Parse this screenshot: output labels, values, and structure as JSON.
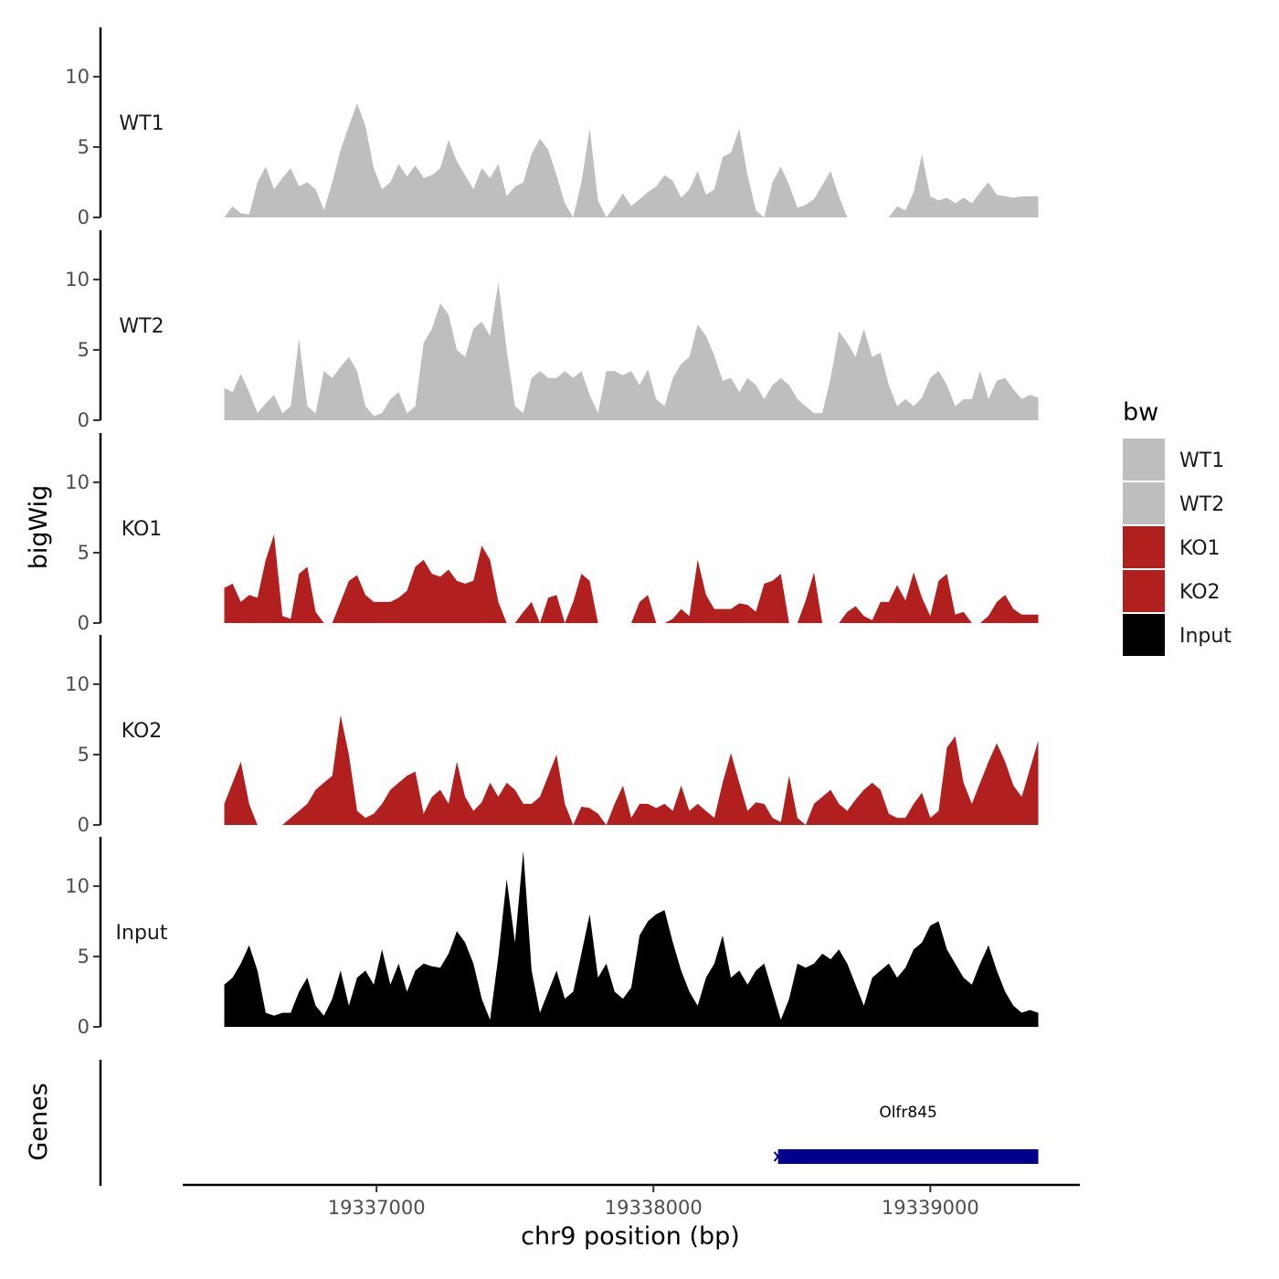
{
  "chart_data": {
    "type": "area",
    "ylabel": "bigWig",
    "xlabel": "chr9 position (bp)",
    "xlim": [
      19336300,
      19339540
    ],
    "ylim": [
      0,
      13.5
    ],
    "yticks": [
      0,
      5,
      10
    ],
    "xticks": [
      19337000,
      19338000,
      19339000
    ],
    "xtick_labels": [
      "19337000",
      "19338000",
      "19339000"
    ],
    "legend": {
      "title": "bw",
      "entries": [
        {
          "label": "WT1",
          "color": "#bebebe"
        },
        {
          "label": "WT2",
          "color": "#bebebe"
        },
        {
          "label": "KO1",
          "color": "#b21f1f"
        },
        {
          "label": "KO2",
          "color": "#b21f1f"
        },
        {
          "label": "Input",
          "color": "#000000"
        }
      ],
      "placement": "right"
    },
    "series": [
      {
        "name": "WT1",
        "color": "#bebebe",
        "x": [
          19336450,
          19336480,
          19336510,
          19336540,
          19336570,
          19336600,
          19336630,
          19336660,
          19336690,
          19336720,
          19336750,
          19336780,
          19336810,
          19336840,
          19336870,
          19336900,
          19336930,
          19336960,
          19336990,
          19337020,
          19337050,
          19337080,
          19337110,
          19337140,
          19337170,
          19337200,
          19337230,
          19337260,
          19337290,
          19337320,
          19337350,
          19337380,
          19337410,
          19337440,
          19337470,
          19337500,
          19337530,
          19337560,
          19337590,
          19337620,
          19337650,
          19337680,
          19337710,
          19337740,
          19337770,
          19337800,
          19337830,
          19337860,
          19337890,
          19337920,
          19337950,
          19337980,
          19338010,
          19338040,
          19338070,
          19338100,
          19338130,
          19338160,
          19338190,
          19338220,
          19338250,
          19338280,
          19338310,
          19338340,
          19338370,
          19338400,
          19338430,
          19338460,
          19338490,
          19338520,
          19338550,
          19338580,
          19338610,
          19338640,
          19338670,
          19338700,
          19338730,
          19338760,
          19338790,
          19338820,
          19338850,
          19338880,
          19338910,
          19338940,
          19338970,
          19339000,
          19339030,
          19339060,
          19339090,
          19339120,
          19339150,
          19339180,
          19339210,
          19339240,
          19339270,
          19339300,
          19339330,
          19339360,
          19339390
        ],
        "values": [
          0,
          0.8,
          0.3,
          0.2,
          2.5,
          3.6,
          2.0,
          2.8,
          3.5,
          2.2,
          2.5,
          2.0,
          0.5,
          2.5,
          4.8,
          6.5,
          8.1,
          6.5,
          3.5,
          2.0,
          2.5,
          3.8,
          2.9,
          3.7,
          2.8,
          3.0,
          3.5,
          5.5,
          4.0,
          3.0,
          2.0,
          3.5,
          2.8,
          3.8,
          1.5,
          2.2,
          2.5,
          4.5,
          5.6,
          4.8,
          3.0,
          1.0,
          0,
          2.5,
          6.3,
          1.2,
          0,
          0.8,
          1.7,
          0.8,
          1.3,
          1.8,
          2.2,
          3.0,
          2.6,
          1.4,
          2.0,
          3.3,
          1.6,
          2.0,
          4.3,
          4.6,
          6.3,
          3.0,
          0.5,
          0,
          2.5,
          3.6,
          2.3,
          0.7,
          0.9,
          1.3,
          2.3,
          3.3,
          1.5,
          0,
          0,
          0,
          0,
          0,
          0,
          0.8,
          0.5,
          1.8,
          4.5,
          1.5,
          1.2,
          1.4,
          1.0,
          1.4,
          1.0,
          1.8,
          2.5,
          1.6,
          1.5,
          1.4,
          1.5,
          1.5,
          1.5
        ]
      },
      {
        "name": "WT2",
        "color": "#bebebe",
        "x": [
          19336450,
          19336480,
          19336510,
          19336540,
          19336570,
          19336600,
          19336630,
          19336660,
          19336690,
          19336720,
          19336750,
          19336780,
          19336810,
          19336840,
          19336870,
          19336900,
          19336930,
          19336960,
          19336990,
          19337020,
          19337050,
          19337080,
          19337110,
          19337140,
          19337170,
          19337200,
          19337230,
          19337260,
          19337290,
          19337320,
          19337350,
          19337380,
          19337410,
          19337440,
          19337470,
          19337500,
          19337530,
          19337560,
          19337590,
          19337620,
          19337650,
          19337680,
          19337710,
          19337740,
          19337770,
          19337800,
          19337830,
          19337860,
          19337890,
          19337920,
          19337950,
          19337980,
          19338010,
          19338040,
          19338070,
          19338100,
          19338130,
          19338160,
          19338190,
          19338220,
          19338250,
          19338280,
          19338310,
          19338340,
          19338370,
          19338400,
          19338430,
          19338460,
          19338490,
          19338520,
          19338550,
          19338580,
          19338610,
          19338640,
          19338670,
          19338700,
          19338730,
          19338760,
          19338790,
          19338820,
          19338850,
          19338880,
          19338910,
          19338940,
          19338970,
          19339000,
          19339030,
          19339060,
          19339090,
          19339120,
          19339150,
          19339180,
          19339210,
          19339240,
          19339270,
          19339300,
          19339330,
          19339360,
          19339390
        ],
        "values": [
          2.3,
          2.0,
          3.3,
          2.0,
          0.5,
          1.2,
          1.8,
          0.5,
          1.0,
          5.8,
          1.0,
          0.5,
          3.5,
          3.0,
          3.8,
          4.5,
          3.5,
          1.0,
          0.3,
          0.5,
          1.5,
          2.0,
          0.5,
          1.0,
          5.5,
          6.5,
          8.3,
          7.5,
          5.0,
          4.5,
          6.5,
          7.0,
          6.0,
          9.8,
          5.0,
          1.0,
          0.5,
          3.0,
          3.5,
          3.0,
          3.0,
          3.5,
          3.0,
          3.5,
          1.8,
          0.5,
          3.5,
          3.5,
          3.2,
          3.5,
          2.5,
          3.6,
          1.5,
          1.0,
          3.0,
          4.0,
          4.5,
          6.8,
          6.0,
          4.6,
          2.8,
          3.0,
          2.0,
          3.0,
          2.5,
          1.5,
          2.5,
          3.0,
          2.5,
          1.5,
          1.0,
          0.5,
          0.5,
          3.0,
          6.3,
          5.5,
          4.5,
          6.5,
          4.5,
          4.8,
          2.5,
          1.0,
          1.5,
          1.0,
          1.6,
          3.0,
          3.5,
          2.5,
          1.0,
          1.5,
          1.5,
          3.5,
          1.5,
          2.8,
          3.0,
          2.2,
          1.5,
          1.8,
          1.6
        ]
      },
      {
        "name": "KO1",
        "color": "#b21f1f",
        "x": [
          19336450,
          19336480,
          19336510,
          19336540,
          19336570,
          19336600,
          19336630,
          19336660,
          19336690,
          19336720,
          19336750,
          19336780,
          19336810,
          19336840,
          19336870,
          19336900,
          19336930,
          19336960,
          19336990,
          19337020,
          19337050,
          19337080,
          19337110,
          19337140,
          19337170,
          19337200,
          19337230,
          19337260,
          19337290,
          19337320,
          19337350,
          19337380,
          19337410,
          19337440,
          19337470,
          19337500,
          19337530,
          19337560,
          19337590,
          19337620,
          19337650,
          19337680,
          19337710,
          19337740,
          19337770,
          19337800,
          19337830,
          19337860,
          19337890,
          19337920,
          19337950,
          19337980,
          19338010,
          19338040,
          19338070,
          19338100,
          19338130,
          19338160,
          19338190,
          19338220,
          19338250,
          19338280,
          19338310,
          19338340,
          19338370,
          19338400,
          19338430,
          19338460,
          19338490,
          19338520,
          19338550,
          19338580,
          19338610,
          19338640,
          19338670,
          19338700,
          19338730,
          19338760,
          19338790,
          19338820,
          19338850,
          19338880,
          19338910,
          19338940,
          19338970,
          19339000,
          19339030,
          19339060,
          19339090,
          19339120,
          19339150,
          19339180,
          19339210,
          19339240,
          19339270,
          19339300,
          19339330,
          19339360,
          19339390
        ],
        "values": [
          2.5,
          2.8,
          1.5,
          2.0,
          1.8,
          4.5,
          6.3,
          0.5,
          0.3,
          3.5,
          4.0,
          0.8,
          0,
          0,
          1.5,
          3.0,
          3.4,
          2.0,
          1.5,
          1.5,
          1.5,
          1.8,
          2.3,
          4.0,
          4.5,
          3.5,
          3.3,
          3.8,
          3.0,
          2.8,
          3.0,
          5.5,
          4.5,
          1.5,
          0,
          0,
          0.8,
          1.5,
          0,
          1.8,
          2.0,
          0,
          1.5,
          3.5,
          3.0,
          0,
          0,
          0,
          0,
          0,
          1.5,
          2.0,
          0,
          0,
          0.3,
          1.0,
          0.5,
          4.5,
          2.0,
          1.0,
          1.0,
          1.0,
          1.4,
          1.3,
          0.8,
          2.8,
          3.0,
          3.5,
          0,
          0,
          1.6,
          3.6,
          0,
          0,
          0,
          0.8,
          1.2,
          0.5,
          0.2,
          1.5,
          1.5,
          2.7,
          1.6,
          3.6,
          1.8,
          0.5,
          3.0,
          3.5,
          0.6,
          0.8,
          0,
          0,
          0.5,
          1.5,
          2.0,
          1.0,
          0.6,
          0.6,
          0.6
        ]
      },
      {
        "name": "KO2",
        "color": "#b21f1f",
        "x": [
          19336450,
          19336480,
          19336510,
          19336540,
          19336570,
          19336600,
          19336630,
          19336660,
          19336690,
          19336720,
          19336750,
          19336780,
          19336810,
          19336840,
          19336870,
          19336900,
          19336930,
          19336960,
          19336990,
          19337020,
          19337050,
          19337080,
          19337110,
          19337140,
          19337170,
          19337200,
          19337230,
          19337260,
          19337290,
          19337320,
          19337350,
          19337380,
          19337410,
          19337440,
          19337470,
          19337500,
          19337530,
          19337560,
          19337590,
          19337620,
          19337650,
          19337680,
          19337710,
          19337740,
          19337770,
          19337800,
          19337830,
          19337860,
          19337890,
          19337920,
          19337950,
          19337980,
          19338010,
          19338040,
          19338070,
          19338100,
          19338130,
          19338160,
          19338190,
          19338220,
          19338250,
          19338280,
          19338310,
          19338340,
          19338370,
          19338400,
          19338430,
          19338460,
          19338490,
          19338520,
          19338550,
          19338580,
          19338610,
          19338640,
          19338670,
          19338700,
          19338730,
          19338760,
          19338790,
          19338820,
          19338850,
          19338880,
          19338910,
          19338940,
          19338970,
          19339000,
          19339030,
          19339060,
          19339090,
          19339120,
          19339150,
          19339180,
          19339210,
          19339240,
          19339270,
          19339300,
          19339330,
          19339360,
          19339390
        ],
        "values": [
          1.5,
          3.0,
          4.5,
          1.5,
          0,
          0,
          0,
          0,
          0.5,
          1.0,
          1.5,
          2.5,
          3.0,
          3.5,
          7.8,
          5.0,
          1.0,
          0.5,
          0.8,
          1.5,
          2.5,
          3.0,
          3.5,
          3.8,
          0.8,
          2.0,
          2.5,
          1.5,
          4.5,
          2.0,
          1.0,
          1.6,
          3.0,
          2.0,
          3.0,
          2.5,
          1.5,
          1.5,
          2.0,
          3.5,
          5.0,
          1.5,
          0,
          1.3,
          1.2,
          0.8,
          0,
          1.5,
          2.8,
          0.5,
          1.5,
          1.5,
          1.2,
          1.5,
          1.0,
          2.8,
          1.0,
          1.5,
          1.0,
          0.5,
          3.0,
          5.1,
          3.0,
          1.0,
          1.6,
          1.5,
          0.5,
          0.2,
          3.5,
          0.5,
          0,
          1.5,
          2.0,
          2.5,
          1.5,
          1.0,
          1.8,
          2.5,
          3.0,
          2.5,
          0.8,
          0.5,
          0.5,
          1.5,
          2.3,
          0.5,
          1.0,
          5.5,
          6.3,
          3.0,
          1.5,
          3.0,
          4.5,
          5.8,
          4.5,
          2.8,
          2.0,
          4.0,
          6.0
        ]
      },
      {
        "name": "Input",
        "color": "#000000",
        "x": [
          19336450,
          19336480,
          19336510,
          19336540,
          19336570,
          19336600,
          19336630,
          19336660,
          19336690,
          19336720,
          19336750,
          19336780,
          19336810,
          19336840,
          19336870,
          19336900,
          19336930,
          19336960,
          19336990,
          19337020,
          19337050,
          19337080,
          19337110,
          19337140,
          19337170,
          19337200,
          19337230,
          19337260,
          19337290,
          19337320,
          19337350,
          19337380,
          19337410,
          19337440,
          19337470,
          19337500,
          19337530,
          19337560,
          19337590,
          19337620,
          19337650,
          19337680,
          19337710,
          19337740,
          19337770,
          19337800,
          19337830,
          19337860,
          19337890,
          19337920,
          19337950,
          19337980,
          19338010,
          19338040,
          19338070,
          19338100,
          19338130,
          19338160,
          19338190,
          19338220,
          19338250,
          19338280,
          19338310,
          19338340,
          19338370,
          19338400,
          19338430,
          19338460,
          19338490,
          19338520,
          19338550,
          19338580,
          19338610,
          19338640,
          19338670,
          19338700,
          19338730,
          19338760,
          19338790,
          19338820,
          19338850,
          19338880,
          19338910,
          19338940,
          19338970,
          19339000,
          19339030,
          19339060,
          19339090,
          19339120,
          19339150,
          19339180,
          19339210,
          19339240,
          19339270,
          19339300,
          19339330,
          19339360,
          19339390
        ],
        "values": [
          3.0,
          3.5,
          4.5,
          5.8,
          4.0,
          1.0,
          0.8,
          1.0,
          1.0,
          2.5,
          3.5,
          1.5,
          0.8,
          2.0,
          4.0,
          1.5,
          3.5,
          4.0,
          3.0,
          5.5,
          3.0,
          4.5,
          2.5,
          4.0,
          4.5,
          4.3,
          4.2,
          5.2,
          6.8,
          6.0,
          4.5,
          2.0,
          0.5,
          5.0,
          10.5,
          6.0,
          12.5,
          4.0,
          1.0,
          2.5,
          4.0,
          2.0,
          2.5,
          5.2,
          8.0,
          3.5,
          4.5,
          2.5,
          2.0,
          2.8,
          6.5,
          7.5,
          8.0,
          8.3,
          6.0,
          4.0,
          2.5,
          1.5,
          3.5,
          4.5,
          6.5,
          3.5,
          4.0,
          3.0,
          4.0,
          4.5,
          2.5,
          0.5,
          2.0,
          4.5,
          4.2,
          4.5,
          5.2,
          4.8,
          5.5,
          4.5,
          3.0,
          1.5,
          3.5,
          4.0,
          4.5,
          3.5,
          4.2,
          5.5,
          6.0,
          7.2,
          7.5,
          5.5,
          4.5,
          3.5,
          3.0,
          4.5,
          5.8,
          4.0,
          2.5,
          1.5,
          1.0,
          1.2,
          1.0
        ]
      }
    ],
    "genes_track": {
      "title": "Genes",
      "genes": [
        {
          "name": "Olfr845",
          "start": 19338450,
          "end": 19339390,
          "strand": "-",
          "color": "#00008b"
        }
      ]
    }
  }
}
